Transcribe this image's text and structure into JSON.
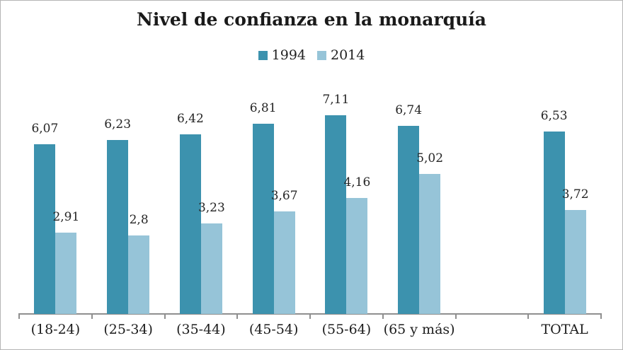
{
  "title": "Nivel de confianza en la monarquía",
  "chart_data": {
    "type": "bar",
    "title": "Nivel de confianza en la monarquía",
    "categories": [
      "(18-24)",
      "(25-34)",
      "(35-44)",
      "(45-54)",
      "(55-64)",
      "(65 y más)",
      "",
      "TOTAL"
    ],
    "series": [
      {
        "name": "1994",
        "color": "#3c92ae",
        "values": [
          6.07,
          6.23,
          6.42,
          6.81,
          7.11,
          6.74,
          null,
          6.53
        ],
        "labels": [
          "6,07",
          "6,23",
          "6,42",
          "6,81",
          "7,11",
          "6,74",
          "",
          "6,53"
        ]
      },
      {
        "name": "2014",
        "color": "#96c4d8",
        "values": [
          2.91,
          2.8,
          3.23,
          3.67,
          4.16,
          5.02,
          null,
          3.72
        ],
        "labels": [
          "2,91",
          "2,8",
          "3,23",
          "3,67",
          "4,16",
          "5,02",
          "",
          "3,72"
        ]
      }
    ],
    "ylim": [
      0,
      7.5
    ],
    "grid": false,
    "legend_position": "top",
    "value_label_decimal_separator": ","
  }
}
